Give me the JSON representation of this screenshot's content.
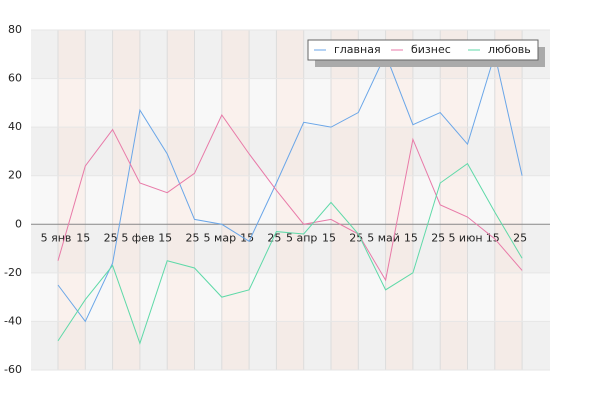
{
  "chart_data": {
    "type": "line",
    "categories": [
      "5 янв",
      "15",
      "25",
      "5 фев",
      "15",
      "25",
      "5 мар",
      "15",
      "25",
      "5 апр",
      "15",
      "25",
      "5 май",
      "15",
      "25",
      "5 июн",
      "15",
      "25"
    ],
    "series": [
      {
        "name": "главная",
        "color": "#6aa6e8",
        "values": [
          -25,
          -40,
          -16,
          47,
          29,
          2,
          0,
          -7,
          17,
          42,
          40,
          46,
          70,
          41,
          46,
          33,
          70,
          20
        ]
      },
      {
        "name": "бизнес",
        "color": "#e87aa8",
        "values": [
          -15,
          24,
          39,
          17,
          13,
          21,
          45,
          29,
          14,
          0,
          2,
          -4,
          -23,
          35,
          8,
          3,
          -6,
          -19
        ]
      },
      {
        "name": "любовь",
        "color": "#5fd9a8",
        "values": [
          -48,
          -31,
          -17,
          -49,
          -15,
          -18,
          -30,
          -27,
          -3,
          -4,
          9,
          -4,
          -27,
          -20,
          17,
          25,
          5,
          -14
        ]
      }
    ],
    "ylim": [
      -60,
      80
    ],
    "yticks": [
      -60,
      -40,
      -20,
      0,
      20,
      40,
      60,
      80
    ],
    "grid": true,
    "legend": "top-right"
  }
}
